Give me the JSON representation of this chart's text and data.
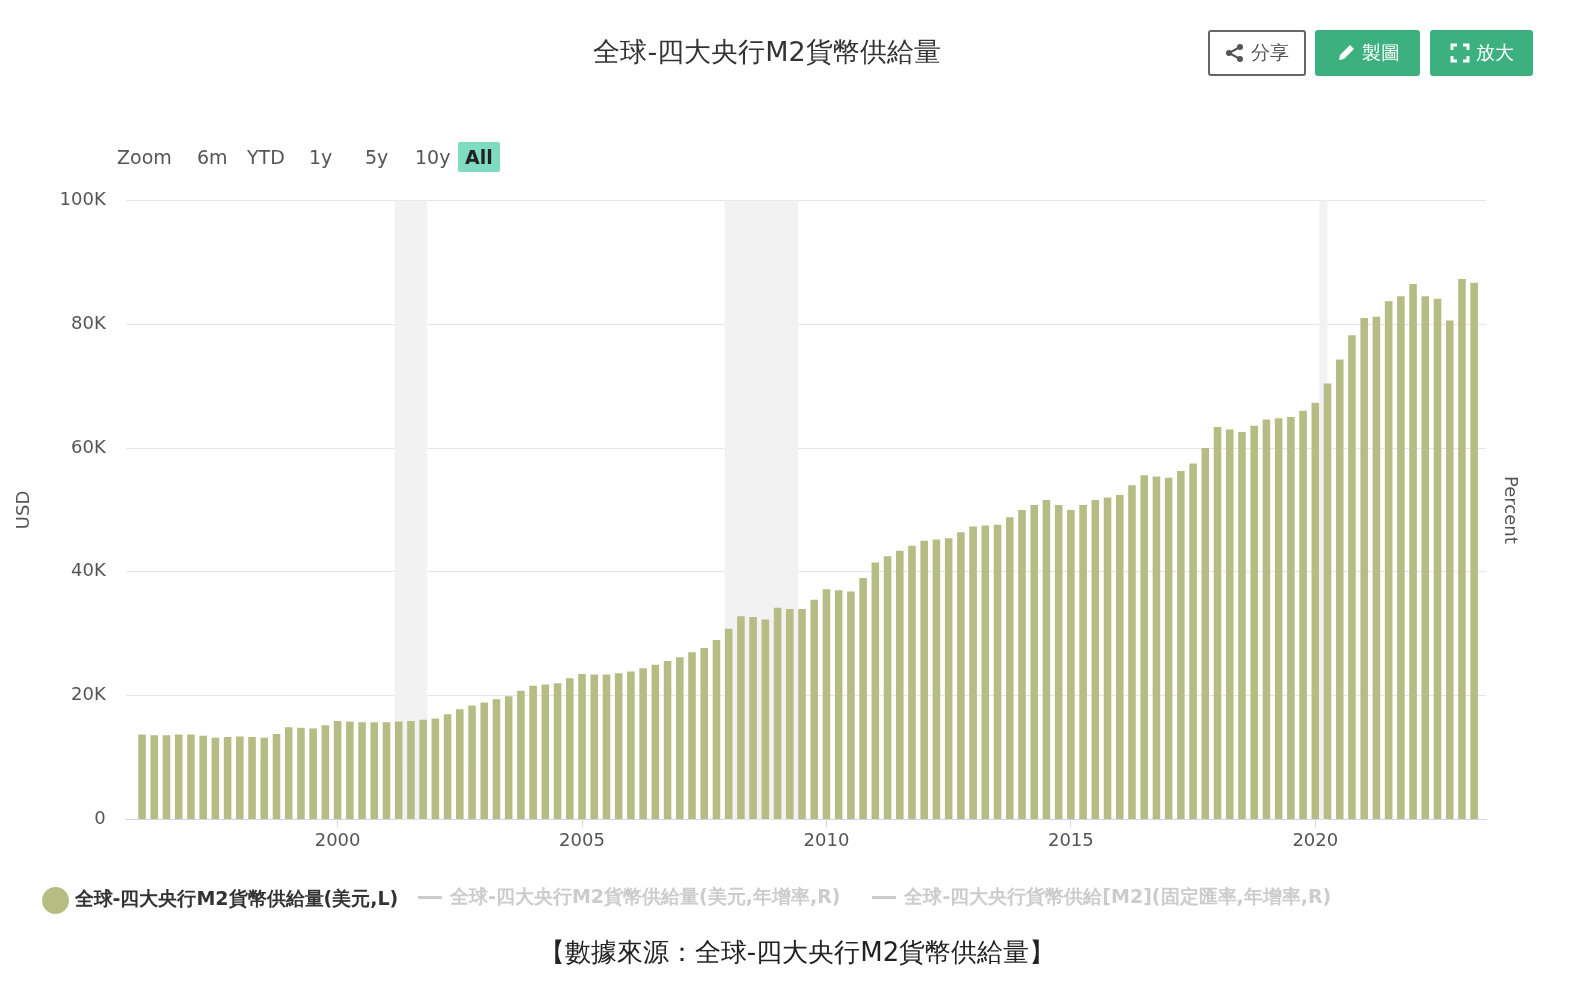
{
  "chart_data": {
    "type": "bar",
    "title": "全球-四大央行M2貨幣供給量",
    "ylabel": "USD",
    "y2label": "Percent",
    "x": [
      "1996-01",
      "1996-04",
      "1996-07",
      "1996-10",
      "1997-01",
      "1997-04",
      "1997-07",
      "1997-10",
      "1998-01",
      "1998-04",
      "1998-07",
      "1998-10",
      "1999-01",
      "1999-04",
      "1999-07",
      "1999-10",
      "2000-01",
      "2000-04",
      "2000-07",
      "2000-10",
      "2001-01",
      "2001-04",
      "2001-07",
      "2001-10",
      "2002-01",
      "2002-04",
      "2002-07",
      "2002-10",
      "2003-01",
      "2003-04",
      "2003-07",
      "2003-10",
      "2004-01",
      "2004-04",
      "2004-07",
      "2004-10",
      "2005-01",
      "2005-04",
      "2005-07",
      "2005-10",
      "2006-01",
      "2006-04",
      "2006-07",
      "2006-10",
      "2007-01",
      "2007-04",
      "2007-07",
      "2007-10",
      "2008-01",
      "2008-04",
      "2008-07",
      "2008-10",
      "2009-01",
      "2009-04",
      "2009-07",
      "2009-10",
      "2010-01",
      "2010-04",
      "2010-07",
      "2010-10",
      "2011-01",
      "2011-04",
      "2011-07",
      "2011-10",
      "2012-01",
      "2012-04",
      "2012-07",
      "2012-10",
      "2013-01",
      "2013-04",
      "2013-07",
      "2013-10",
      "2014-01",
      "2014-04",
      "2014-07",
      "2014-10",
      "2015-01",
      "2015-04",
      "2015-07",
      "2015-10",
      "2016-01",
      "2016-04",
      "2016-07",
      "2016-10",
      "2017-01",
      "2017-04",
      "2017-07",
      "2017-10",
      "2018-01",
      "2018-04",
      "2018-07",
      "2018-10",
      "2019-01",
      "2019-04",
      "2019-07",
      "2019-10",
      "2020-01",
      "2020-04",
      "2020-07",
      "2020-10",
      "2021-01",
      "2021-04",
      "2021-07",
      "2021-10",
      "2022-01",
      "2022-04",
      "2022-07",
      "2022-10",
      "2023-01",
      "2023-04"
    ],
    "series": [
      {
        "name": "全球-四大央行M2貨幣供給量(美元,L)",
        "color": "#b5bd85",
        "values": [
          13700,
          13600,
          13600,
          13700,
          13700,
          13500,
          13200,
          13300,
          13400,
          13300,
          13200,
          13800,
          14900,
          14800,
          14700,
          15200,
          15900,
          15800,
          15700,
          15700,
          15700,
          15800,
          15900,
          16100,
          16300,
          17000,
          17800,
          18400,
          18900,
          19400,
          19900,
          20800,
          21600,
          21800,
          22000,
          22800,
          23500,
          23400,
          23400,
          23600,
          23900,
          24400,
          25000,
          25600,
          26200,
          27000,
          27700,
          29000,
          30800,
          32800,
          32700,
          32300,
          34200,
          34000,
          34000,
          35500,
          37200,
          37000,
          36800,
          39000,
          41500,
          42500,
          43400,
          44200,
          45000,
          45200,
          45400,
          46400,
          47300,
          47500,
          47600,
          48800,
          50000,
          50800,
          51600,
          50800,
          50000,
          50800,
          51600,
          52000,
          52400,
          54000,
          55600,
          55400,
          55200,
          56300,
          57500,
          60000,
          63400,
          63000,
          62600,
          63600,
          64600,
          64800,
          65000,
          66000,
          67300,
          70400,
          74300,
          78200,
          81000,
          81200,
          83700,
          84500,
          86500,
          84500,
          84100,
          80600,
          87300,
          86700
        ]
      }
    ],
    "xlim": [
      "1995-09",
      "2023-07"
    ],
    "xticks": [
      "2000",
      "2005",
      "2010",
      "2015",
      "2020"
    ],
    "ylim": [
      0,
      100000
    ],
    "yticks": [
      {
        "value": 0,
        "label": "0"
      },
      {
        "value": 20000,
        "label": "20K"
      },
      {
        "value": 40000,
        "label": "40K"
      },
      {
        "value": 60000,
        "label": "60K"
      },
      {
        "value": 80000,
        "label": "80K"
      },
      {
        "value": 100000,
        "label": "100K"
      }
    ],
    "bands": [
      {
        "axis": "x",
        "from": "2001-03",
        "to": "2001-11",
        "color": "#f2f2f2"
      },
      {
        "axis": "x",
        "from": "2007-12",
        "to": "2009-06",
        "color": "#f2f2f2"
      },
      {
        "axis": "x",
        "from": "2020-02",
        "to": "2020-04",
        "color": "#f2f2f2"
      }
    ],
    "grid": "y",
    "legend": "bottom left",
    "annotations": [
      "Zoom",
      "6m",
      "YTD",
      "1y",
      "5y",
      "10y",
      "All",
      "分享",
      "製圖",
      "放大",
      "全球-四大央行M2貨幣供給量(美元,年增率,R)",
      "全球-四大央行貨幣供給[M2](固定匯率,年增率,R)",
      "【數據來源：全球-四大央行M2貨幣供給量】"
    ]
  }
}
